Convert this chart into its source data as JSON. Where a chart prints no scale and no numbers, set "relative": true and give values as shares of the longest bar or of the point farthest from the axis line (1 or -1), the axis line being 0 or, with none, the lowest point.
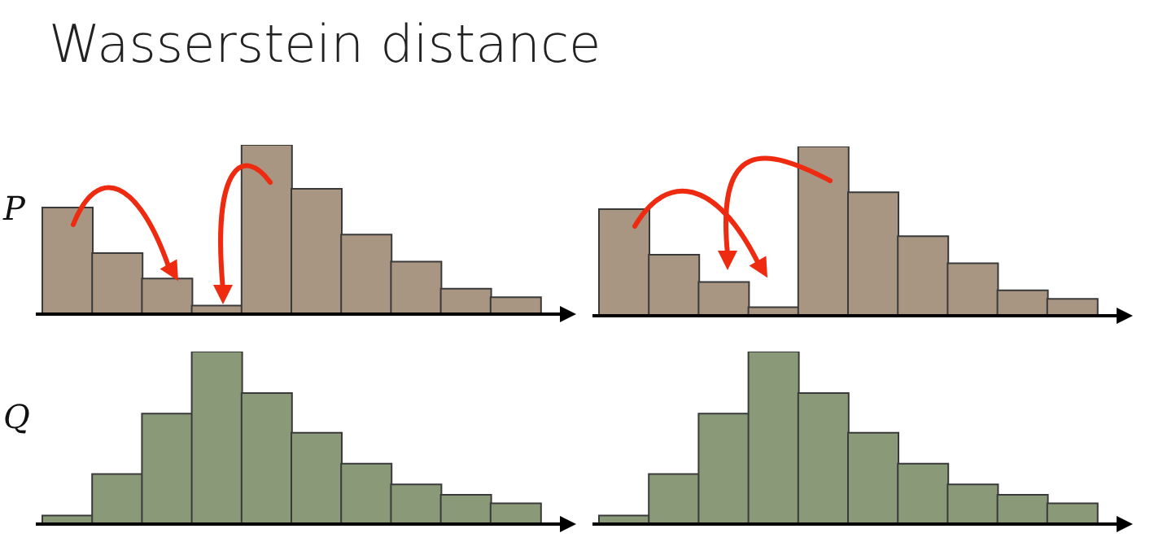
{
  "chart_data": [
    {
      "type": "bar",
      "title": "Wasserstein distance",
      "ylabel": "P",
      "relative": true,
      "color": "#a89682",
      "categories": [
        null,
        null,
        null,
        null,
        null,
        null,
        null,
        null,
        null,
        null
      ],
      "values": [
        0.63,
        0.36,
        0.21,
        0.05,
        1,
        0.74,
        0.47,
        0.31,
        0.15,
        0.1
      ]
    },
    {
      "type": "bar",
      "relative": true,
      "color": "#a89682",
      "categories": [
        null,
        null,
        null,
        null,
        null,
        null,
        null,
        null,
        null,
        null
      ],
      "values": [
        0.63,
        0.36,
        0.2,
        0.05,
        1,
        0.73,
        0.47,
        0.31,
        0.15,
        0.1
      ]
    },
    {
      "type": "bar",
      "ylabel": "Q",
      "relative": true,
      "color": "#8a9a78",
      "categories": [
        null,
        null,
        null,
        null,
        null,
        null,
        null,
        null,
        null,
        null
      ],
      "values": [
        0.05,
        0.29,
        0.64,
        1,
        0.76,
        0.53,
        0.35,
        0.23,
        0.17,
        0.12
      ]
    },
    {
      "type": "bar",
      "relative": true,
      "color": "#8a9a78",
      "categories": [
        null,
        null,
        null,
        null,
        null,
        null,
        null,
        null,
        null,
        null
      ],
      "values": [
        0.05,
        0.29,
        0.64,
        1,
        0.76,
        0.53,
        0.35,
        0.23,
        0.17,
        0.12
      ]
    }
  ]
}
